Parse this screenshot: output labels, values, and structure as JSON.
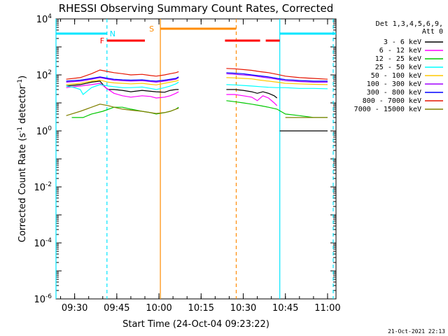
{
  "chart_data": {
    "type": "line",
    "title": "RHESSI Observing Summary Count Rates, Corrected",
    "xlabel": "Start Time (24-Oct-04 09:23:22)",
    "ylabel_parts": [
      "Corrected Count Rate (s",
      "-1",
      " detector",
      "-1",
      ")"
    ],
    "yscale": "log",
    "xlim": [
      "09:23:22",
      "11:03:00"
    ],
    "ylim": [
      1e-06,
      10000.0
    ],
    "x_ticks": [
      "09:30",
      "09:45",
      "10:00",
      "10:15",
      "10:30",
      "10:45",
      "11:00"
    ],
    "y_ticks": [
      {
        "value": 1e-06,
        "base": "10",
        "exp": "-6"
      },
      {
        "value": 0.0001,
        "base": "10",
        "exp": "-4"
      },
      {
        "value": 0.01,
        "base": "10",
        "exp": "-2"
      },
      {
        "value": 1,
        "base": "10",
        "exp": "0"
      },
      {
        "value": 100,
        "base": "10",
        "exp": "2"
      },
      {
        "value": 10000,
        "base": "10",
        "exp": "4"
      }
    ],
    "legend": {
      "header": [
        "Det 1,3,4,5,6,9,",
        "Att 0"
      ],
      "position": "right"
    },
    "series": [
      {
        "name": "3 - 6 keV",
        "color": "#000000",
        "segments": [
          {
            "x": [
              "09:27",
              "09:32",
              "09:36",
              "09:39",
              "09:41",
              "09:42",
              "09:44",
              "09:47",
              "09:50",
              "09:54",
              "09:57",
              "09:59",
              "10:02",
              "10:04",
              "10:06",
              "10:07"
            ],
            "y": [
              40,
              45,
              55,
              60,
              35,
              30,
              30,
              28,
              25,
              28,
              26,
              25,
              24,
              28,
              30,
              30
            ]
          },
          {
            "x": [
              "10:24",
              "10:27",
              "10:30",
              "10:33",
              "10:35",
              "10:37",
              "10:39",
              "10:41",
              "10:42"
            ],
            "y": [
              30,
              30,
              28,
              25,
              22,
              25,
              22,
              18,
              15
            ]
          },
          {
            "x": [
              "10:43",
              "10:45",
              "10:47",
              "11:00"
            ],
            "y": [
              1,
              1,
              1,
              1
            ]
          }
        ]
      },
      {
        "name": "6 - 12 keV",
        "color": "#ff00ff",
        "segments": [
          {
            "x": [
              "09:27",
              "09:32",
              "09:36",
              "09:39",
              "09:42",
              "09:44",
              "09:47",
              "09:50",
              "09:54",
              "09:57",
              "09:59",
              "10:02",
              "10:04",
              "10:06",
              "10:07"
            ],
            "y": [
              35,
              40,
              45,
              50,
              30,
              22,
              18,
              16,
              18,
              17,
              15,
              16,
              18,
              22,
              25
            ]
          },
          {
            "x": [
              "10:24",
              "10:27",
              "10:30",
              "10:33",
              "10:35",
              "10:37",
              "10:39",
              "10:41",
              "10:42"
            ],
            "y": [
              20,
              20,
              18,
              16,
              12,
              18,
              15,
              10,
              8
            ]
          }
        ]
      },
      {
        "name": "12 - 25 keV",
        "color": "#00c800",
        "segments": [
          {
            "x": [
              "09:29",
              "09:33",
              "09:36",
              "09:40",
              "09:44",
              "09:47",
              "09:50",
              "09:54",
              "09:57",
              "09:59",
              "10:02",
              "10:04",
              "10:06",
              "10:07"
            ],
            "y": [
              3,
              3,
              4,
              5,
              7,
              7,
              6,
              5,
              4.5,
              4,
              4.5,
              5,
              6,
              7
            ]
          },
          {
            "x": [
              "10:24",
              "10:27",
              "10:30",
              "10:33",
              "10:36",
              "10:39",
              "10:42",
              "10:45",
              "10:50",
              "10:55",
              "11:00"
            ],
            "y": [
              12,
              11,
              10,
              9,
              8,
              7,
              6,
              4,
              3.5,
              3,
              3
            ]
          }
        ]
      },
      {
        "name": "25 - 50 keV",
        "color": "#00ffff",
        "segments": [
          {
            "x": [
              "09:27",
              "09:30",
              "09:32",
              "09:33",
              "09:36",
              "09:39",
              "09:42",
              "09:44",
              "09:47",
              "09:50",
              "09:54",
              "09:57",
              "09:59",
              "10:02",
              "10:04",
              "10:06",
              "10:07"
            ],
            "y": [
              40,
              35,
              30,
              20,
              35,
              45,
              40,
              38,
              35,
              35,
              37,
              33,
              30,
              35,
              40,
              48,
              55
            ]
          },
          {
            "x": [
              "10:24",
              "10:27",
              "10:30",
              "10:33",
              "10:36",
              "10:39",
              "10:42",
              "10:45",
              "10:50",
              "10:55",
              "11:00"
            ],
            "y": [
              45,
              44,
              42,
              40,
              38,
              36,
              35,
              35,
              33,
              33,
              32
            ]
          }
        ]
      },
      {
        "name": "50 - 100 keV",
        "color": "#ffc800",
        "segments": [
          {
            "x": [
              "09:27",
              "09:32",
              "09:36",
              "09:39",
              "09:42",
              "09:44",
              "09:47",
              "09:50",
              "09:54",
              "09:57",
              "09:59",
              "10:02",
              "10:04",
              "10:06",
              "10:07"
            ],
            "y": [
              45,
              50,
              60,
              65,
              55,
              52,
              50,
              48,
              50,
              46,
              44,
              50,
              55,
              60,
              65
            ]
          },
          {
            "x": [
              "10:24",
              "10:27",
              "10:30",
              "10:33",
              "10:36",
              "10:39",
              "10:42",
              "10:45",
              "10:50",
              "10:55",
              "11:00"
            ],
            "y": [
              80,
              78,
              75,
              72,
              65,
              60,
              55,
              50,
              48,
              46,
              45
            ]
          }
        ]
      },
      {
        "name": "100 - 300 keV",
        "color": "#a000ff",
        "segments": [
          {
            "x": [
              "09:27",
              "09:32",
              "09:36",
              "09:39",
              "09:42",
              "09:44",
              "09:47",
              "09:50",
              "09:54",
              "09:57",
              "09:59",
              "10:02",
              "10:04",
              "10:06",
              "10:07"
            ],
            "y": [
              55,
              60,
              70,
              80,
              70,
              65,
              62,
              60,
              62,
              58,
              55,
              60,
              65,
              70,
              80
            ]
          },
          {
            "x": [
              "10:24",
              "10:27",
              "10:30",
              "10:33",
              "10:36",
              "10:39",
              "10:42",
              "10:45",
              "10:50",
              "10:55",
              "11:00"
            ],
            "y": [
              110,
              105,
              100,
              95,
              85,
              78,
              70,
              62,
              58,
              55,
              55
            ]
          }
        ]
      },
      {
        "name": "300 - 800 keV",
        "color": "#0000ff",
        "segments": [
          {
            "x": [
              "09:27",
              "09:32",
              "09:36",
              "09:39",
              "09:42",
              "09:44",
              "09:47",
              "09:50",
              "09:54",
              "09:57",
              "09:59",
              "10:02",
              "10:04",
              "10:06",
              "10:07"
            ],
            "y": [
              60,
              65,
              75,
              85,
              75,
              70,
              67,
              65,
              67,
              62,
              60,
              65,
              70,
              75,
              85
            ]
          },
          {
            "x": [
              "10:24",
              "10:27",
              "10:30",
              "10:33",
              "10:36",
              "10:39",
              "10:42",
              "10:45",
              "10:50",
              "10:55",
              "11:00"
            ],
            "y": [
              120,
              115,
              110,
              100,
              92,
              85,
              75,
              68,
              63,
              60,
              60
            ]
          }
        ]
      },
      {
        "name": "800 - 7000 keV",
        "color": "#e61400",
        "segments": [
          {
            "x": [
              "09:27",
              "09:32",
              "09:36",
              "09:39",
              "09:42",
              "09:44",
              "09:47",
              "09:50",
              "09:54",
              "09:57",
              "09:59",
              "10:02",
              "10:04",
              "10:06",
              "10:07"
            ],
            "y": [
              70,
              80,
              110,
              150,
              130,
              120,
              110,
              100,
              105,
              95,
              90,
              100,
              110,
              120,
              130
            ]
          },
          {
            "x": [
              "10:24",
              "10:27",
              "10:30",
              "10:33",
              "10:36",
              "10:39",
              "10:42",
              "10:45",
              "10:50",
              "10:55",
              "11:00"
            ],
            "y": [
              170,
              165,
              155,
              145,
              130,
              120,
              105,
              90,
              80,
              75,
              70
            ]
          }
        ]
      },
      {
        "name": "7000 - 15000 keV",
        "color": "#808000",
        "segments": [
          {
            "x": [
              "09:27",
              "09:32",
              "09:36",
              "09:39",
              "09:42",
              "09:44",
              "09:47",
              "09:50",
              "09:54",
              "09:57",
              "09:59",
              "10:02",
              "10:04",
              "10:06",
              "10:07"
            ],
            "y": [
              3.5,
              5,
              7,
              9,
              8,
              7,
              6,
              5.5,
              5,
              4.5,
              4.2,
              4.5,
              5,
              6,
              6.5
            ]
          },
          {
            "x": [
              "10:45",
              "10:50",
              "10:55",
              "11:00"
            ],
            "y": [
              3,
              3,
              3,
              3
            ]
          }
        ]
      }
    ],
    "annotations": {
      "intervals": [
        {
          "label": "N",
          "color": "#00e6ff",
          "row": "top",
          "ranges": [
            [
              "09:23:22",
              "09:41:30"
            ],
            [
              "10:43:00",
              "11:03:00"
            ]
          ]
        },
        {
          "label": "S",
          "color": "#ff8c00",
          "row": "top",
          "ranges": [
            [
              "10:00:30",
              "10:27:30"
            ]
          ]
        },
        {
          "label": "F",
          "color": "#ff0000",
          "row": "mid",
          "ranges": [
            [
              "09:41:30",
              "09:55:00"
            ],
            [
              "10:23:30",
              "10:36:00"
            ],
            [
              "10:38:00",
              "10:43:00"
            ]
          ]
        }
      ],
      "vlines": [
        {
          "x": "09:23:22",
          "color": "#00e6ff",
          "style": "solid"
        },
        {
          "x": "09:41:30",
          "color": "#00e6ff",
          "style": "dashed"
        },
        {
          "x": "10:00:30",
          "color": "#ff8c00",
          "style": "solid"
        },
        {
          "x": "10:27:30",
          "color": "#ff8c00",
          "style": "dashed"
        },
        {
          "x": "10:43:00",
          "color": "#00e6ff",
          "style": "solid"
        },
        {
          "x": "11:02:00",
          "color": "#00e6ff",
          "style": "dashed"
        }
      ]
    },
    "footer_timestamp": "21-Oct-2021 22:13"
  }
}
